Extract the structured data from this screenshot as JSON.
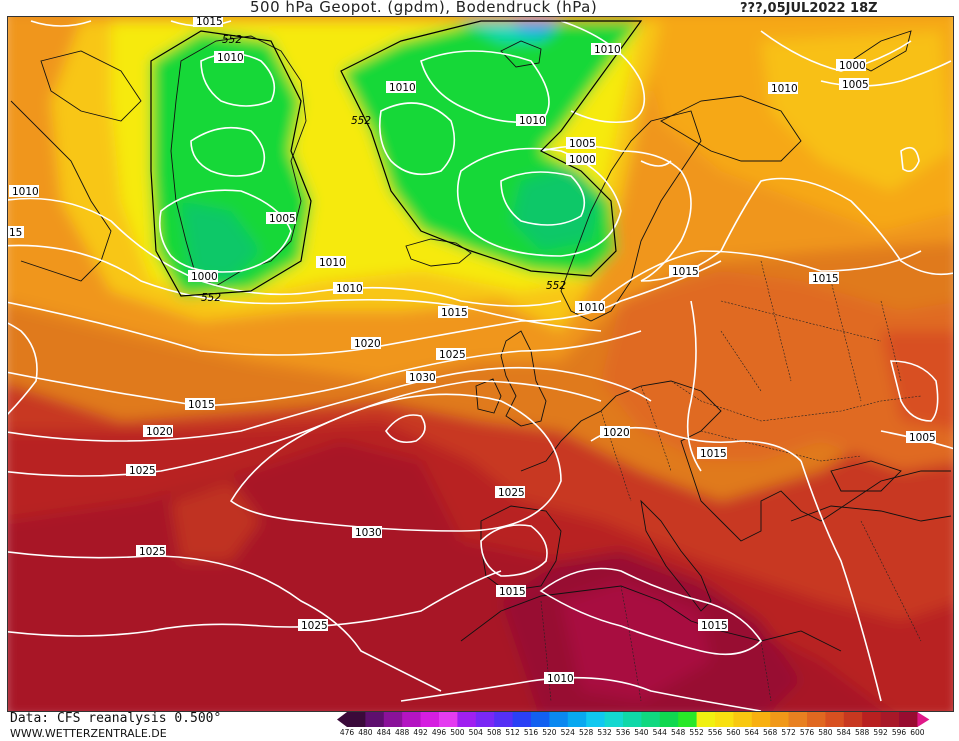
{
  "header": {
    "title": "500 hPa Geopot. (gpdm), Bodendruck (hPa)",
    "date": "???,05JUL2022 18Z"
  },
  "footer": {
    "source": "Data: CFS reanalysis 0.500°",
    "site": "WWW.WETTERZENTRALE.DE"
  },
  "legend": {
    "values": [
      "476",
      "480",
      "484",
      "488",
      "492",
      "496",
      "500",
      "504",
      "508",
      "512",
      "516",
      "520",
      "524",
      "528",
      "532",
      "536",
      "540",
      "544",
      "548",
      "552",
      "556",
      "560",
      "564",
      "568",
      "572",
      "576",
      "580",
      "584",
      "588",
      "592",
      "596",
      "600"
    ],
    "colors": [
      "#3a0a3a",
      "#5e0f6e",
      "#8a1299",
      "#b414c2",
      "#d51ee0",
      "#e43cf0",
      "#a020f0",
      "#7a28f5",
      "#5530f5",
      "#2a40f5",
      "#1260f0",
      "#0a88f0",
      "#08a8f0",
      "#10c8f0",
      "#14d8d0",
      "#10d8a8",
      "#10d880",
      "#10d850",
      "#28e828",
      "#f0f010",
      "#f8e010",
      "#f8c810",
      "#f8b010",
      "#f09818",
      "#e88020",
      "#e06820",
      "#d85020",
      "#c83820",
      "#b82020",
      "#a81828",
      "#980c30",
      "#e01888"
    ]
  },
  "isobar_labels": {
    "l1000_a": "1000",
    "l1000_b": "1000",
    "l1000_c": "1000",
    "l1005_a": "1005",
    "l1005_b": "1005",
    "l1005_c": "1005",
    "l1005_d": "1005",
    "l1010_a": "1010",
    "l1010_b": "1010",
    "l1010_c": "1010",
    "l1010_d": "1010",
    "l1010_e": "1010",
    "l1010_f": "1010",
    "l1010_g": "1010",
    "l1010_h": "1010",
    "l1010_i": "1010",
    "l1010_j": "1010",
    "l1010_k": "1010",
    "l1015_a": "1015",
    "l1015_b": "1015",
    "l1015_c": "1015",
    "l1015_d": "1015",
    "l1015_e": "1015",
    "l1015_f": "1015",
    "l1015_g": "1015",
    "l1015_h": "15",
    "l1020_a": "1020",
    "l1020_b": "1020",
    "l1020_c": "1020",
    "l1025_a": "1025",
    "l1025_b": "1025",
    "l1025_c": "1025",
    "l1025_d": "1025",
    "l1025_e": "1025",
    "l1030_a": "1030",
    "l1030_b": "1030"
  },
  "geopotential_labels": {
    "g552_a": "552",
    "g552_b": "552",
    "g552_c": "552",
    "g552_d": "552"
  }
}
